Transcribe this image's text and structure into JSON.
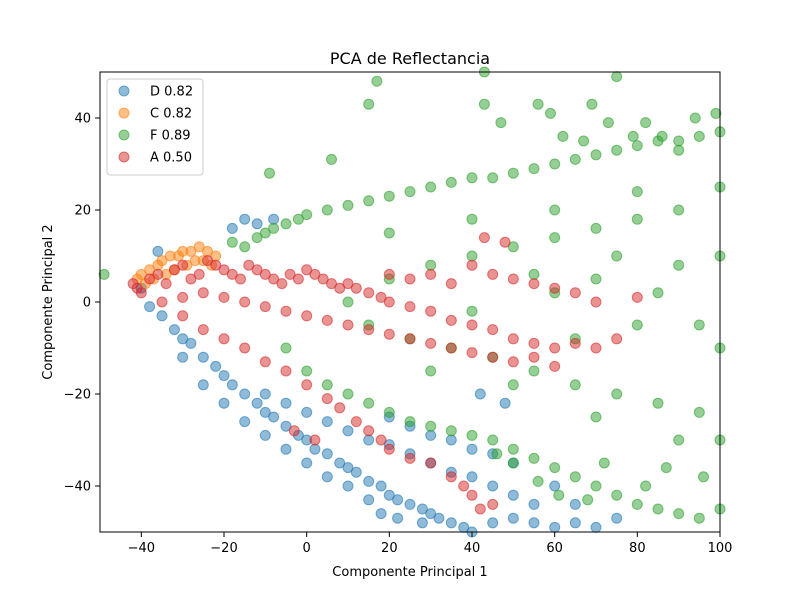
{
  "chart_data": {
    "type": "scatter",
    "title": "PCA de Reflectancia",
    "xlabel": "Componente Principal 1",
    "ylabel": "Componente Principal 2",
    "xlim": [
      -50,
      100
    ],
    "ylim": [
      -50,
      50
    ],
    "x_ticks": [
      -40,
      -20,
      0,
      20,
      40,
      60,
      80,
      100
    ],
    "y_ticks": [
      -40,
      -20,
      0,
      20,
      40
    ],
    "x_tick_labels": [
      "−40",
      "−20",
      "0",
      "20",
      "40",
      "60",
      "80",
      "100"
    ],
    "y_tick_labels": [
      "−40",
      "−20",
      "0",
      "20",
      "40"
    ],
    "grid": false,
    "legend_position": "top-left",
    "series": [
      {
        "name": "D 0.82",
        "color": "#1f77b4",
        "points": [
          [
            -40,
            3
          ],
          [
            -38,
            -1
          ],
          [
            -35,
            -3
          ],
          [
            -32,
            -6
          ],
          [
            -30,
            -8
          ],
          [
            -28,
            -9
          ],
          [
            -25,
            -12
          ],
          [
            -22,
            -14
          ],
          [
            -20,
            -16
          ],
          [
            -18,
            -18
          ],
          [
            -15,
            -20
          ],
          [
            -12,
            -22
          ],
          [
            -10,
            -24
          ],
          [
            -8,
            -25
          ],
          [
            -5,
            -27
          ],
          [
            -2,
            -29
          ],
          [
            0,
            -30
          ],
          [
            2,
            -32
          ],
          [
            5,
            -33
          ],
          [
            8,
            -35
          ],
          [
            10,
            -36
          ],
          [
            12,
            -37
          ],
          [
            15,
            -39
          ],
          [
            18,
            -40
          ],
          [
            20,
            -42
          ],
          [
            22,
            -43
          ],
          [
            25,
            -44
          ],
          [
            28,
            -45
          ],
          [
            30,
            -46
          ],
          [
            32,
            -47
          ],
          [
            35,
            -48
          ],
          [
            38,
            -49
          ],
          [
            40,
            -50
          ],
          [
            45,
            -48
          ],
          [
            50,
            -47
          ],
          [
            55,
            -48
          ],
          [
            60,
            -49
          ],
          [
            65,
            -48
          ],
          [
            70,
            -49
          ],
          [
            -10,
            -20
          ],
          [
            -5,
            -22
          ],
          [
            0,
            -24
          ],
          [
            5,
            -26
          ],
          [
            10,
            -28
          ],
          [
            15,
            -30
          ],
          [
            20,
            -31
          ],
          [
            25,
            -33
          ],
          [
            30,
            -35
          ],
          [
            35,
            -37
          ],
          [
            40,
            -38
          ],
          [
            45,
            -40
          ],
          [
            50,
            -42
          ],
          [
            55,
            -44
          ],
          [
            20,
            -25
          ],
          [
            25,
            -27
          ],
          [
            30,
            -29
          ],
          [
            35,
            -30
          ],
          [
            40,
            -32
          ],
          [
            45,
            -33
          ],
          [
            50,
            -35
          ],
          [
            28,
            -48
          ],
          [
            22,
            -47
          ],
          [
            18,
            -46
          ],
          [
            -15,
            18
          ],
          [
            -12,
            17
          ],
          [
            -18,
            16
          ],
          [
            -8,
            18
          ],
          [
            -36,
            11
          ],
          [
            -30,
            -12
          ],
          [
            -25,
            -18
          ],
          [
            -20,
            -22
          ],
          [
            -15,
            -26
          ],
          [
            -10,
            -29
          ],
          [
            -5,
            -32
          ],
          [
            0,
            -35
          ],
          [
            5,
            -38
          ],
          [
            10,
            -40
          ],
          [
            15,
            -43
          ],
          [
            60,
            -40
          ],
          [
            65,
            -44
          ],
          [
            75,
            -47
          ],
          [
            42,
            -20
          ],
          [
            48,
            -22
          ]
        ]
      },
      {
        "name": "C 0.82",
        "color": "#ff7f0e",
        "points": [
          [
            -41,
            5
          ],
          [
            -40,
            6
          ],
          [
            -38,
            7
          ],
          [
            -36,
            8
          ],
          [
            -35,
            9
          ],
          [
            -33,
            10
          ],
          [
            -31,
            10
          ],
          [
            -30,
            11
          ],
          [
            -28,
            11
          ],
          [
            -26,
            12
          ],
          [
            -24,
            11
          ],
          [
            -22,
            10
          ],
          [
            -39,
            4
          ],
          [
            -37,
            5
          ],
          [
            -34,
            6
          ],
          [
            -32,
            7
          ],
          [
            -29,
            8
          ],
          [
            -27,
            9
          ],
          [
            -25,
            9
          ],
          [
            -23,
            8
          ]
        ]
      },
      {
        "name": "F 0.89",
        "color": "#2ca02c",
        "points": [
          [
            -49,
            6
          ],
          [
            -18,
            13
          ],
          [
            -15,
            12
          ],
          [
            -12,
            14
          ],
          [
            -10,
            15
          ],
          [
            -8,
            16
          ],
          [
            -5,
            17
          ],
          [
            -2,
            18
          ],
          [
            0,
            19
          ],
          [
            5,
            20
          ],
          [
            10,
            21
          ],
          [
            15,
            22
          ],
          [
            20,
            23
          ],
          [
            25,
            24
          ],
          [
            30,
            25
          ],
          [
            35,
            26
          ],
          [
            40,
            27
          ],
          [
            45,
            27
          ],
          [
            50,
            28
          ],
          [
            55,
            29
          ],
          [
            60,
            30
          ],
          [
            65,
            31
          ],
          [
            70,
            32
          ],
          [
            75,
            33
          ],
          [
            80,
            34
          ],
          [
            85,
            35
          ],
          [
            90,
            35
          ],
          [
            95,
            36
          ],
          [
            100,
            37
          ],
          [
            -5,
            -10
          ],
          [
            0,
            -15
          ],
          [
            5,
            -18
          ],
          [
            10,
            -20
          ],
          [
            15,
            -22
          ],
          [
            20,
            -24
          ],
          [
            25,
            -26
          ],
          [
            30,
            -27
          ],
          [
            35,
            -28
          ],
          [
            40,
            -29
          ],
          [
            45,
            -30
          ],
          [
            50,
            -32
          ],
          [
            55,
            -34
          ],
          [
            60,
            -36
          ],
          [
            65,
            -38
          ],
          [
            70,
            -40
          ],
          [
            75,
            -42
          ],
          [
            80,
            -44
          ],
          [
            85,
            -45
          ],
          [
            90,
            -46
          ],
          [
            95,
            -47
          ],
          [
            100,
            -45
          ],
          [
            10,
            0
          ],
          [
            20,
            5
          ],
          [
            30,
            8
          ],
          [
            40,
            10
          ],
          [
            50,
            12
          ],
          [
            60,
            14
          ],
          [
            70,
            16
          ],
          [
            80,
            18
          ],
          [
            90,
            20
          ],
          [
            15,
            -5
          ],
          [
            25,
            -8
          ],
          [
            35,
            -10
          ],
          [
            45,
            -12
          ],
          [
            55,
            -15
          ],
          [
            65,
            -18
          ],
          [
            75,
            -20
          ],
          [
            85,
            -22
          ],
          [
            95,
            -24
          ],
          [
            20,
            15
          ],
          [
            30,
            -15
          ],
          [
            40,
            18
          ],
          [
            50,
            -18
          ],
          [
            60,
            20
          ],
          [
            70,
            -25
          ],
          [
            80,
            24
          ],
          [
            90,
            -30
          ],
          [
            100,
            10
          ],
          [
            100,
            -10
          ],
          [
            100,
            25
          ],
          [
            100,
            -30
          ],
          [
            -9,
            28
          ],
          [
            6,
            31
          ],
          [
            15,
            43
          ],
          [
            17,
            48
          ],
          [
            43,
            50
          ],
          [
            43,
            43
          ],
          [
            47,
            39
          ],
          [
            56,
            43
          ],
          [
            59,
            41
          ],
          [
            62,
            36
          ],
          [
            67,
            35
          ],
          [
            69,
            43
          ],
          [
            73,
            39
          ],
          [
            75,
            49
          ],
          [
            79,
            36
          ],
          [
            82,
            39
          ],
          [
            86,
            36
          ],
          [
            90,
            33
          ],
          [
            94,
            40
          ],
          [
            99,
            41
          ],
          [
            72,
            -35
          ],
          [
            82,
            -40
          ],
          [
            87,
            -36
          ],
          [
            96,
            -38
          ],
          [
            68,
            -43
          ],
          [
            61,
            -42
          ],
          [
            56,
            -39
          ],
          [
            50,
            -35
          ],
          [
            46,
            -33
          ],
          [
            60,
            2
          ],
          [
            70,
            5
          ],
          [
            80,
            -5
          ],
          [
            90,
            8
          ],
          [
            40,
            -2
          ],
          [
            55,
            6
          ],
          [
            65,
            -8
          ],
          [
            75,
            10
          ],
          [
            85,
            2
          ],
          [
            95,
            -5
          ]
        ]
      },
      {
        "name": "A 0.50",
        "color": "#d62728",
        "points": [
          [
            -42,
            4
          ],
          [
            -41,
            3
          ],
          [
            -40,
            2
          ],
          [
            -38,
            5
          ],
          [
            -36,
            6
          ],
          [
            -34,
            4
          ],
          [
            -32,
            7
          ],
          [
            -30,
            8
          ],
          [
            -28,
            5
          ],
          [
            -26,
            6
          ],
          [
            -24,
            9
          ],
          [
            -22,
            8
          ],
          [
            -20,
            7
          ],
          [
            -18,
            6
          ],
          [
            -16,
            5
          ],
          [
            -14,
            8
          ],
          [
            -12,
            7
          ],
          [
            -10,
            6
          ],
          [
            -8,
            5
          ],
          [
            -6,
            4
          ],
          [
            -4,
            6
          ],
          [
            -2,
            5
          ],
          [
            0,
            7
          ],
          [
            2,
            6
          ],
          [
            4,
            5
          ],
          [
            6,
            4
          ],
          [
            8,
            3
          ],
          [
            10,
            4
          ],
          [
            12,
            3
          ],
          [
            15,
            2
          ],
          [
            18,
            1
          ],
          [
            20,
            0
          ],
          [
            25,
            -1
          ],
          [
            30,
            -2
          ],
          [
            35,
            -4
          ],
          [
            40,
            -5
          ],
          [
            45,
            -6
          ],
          [
            50,
            -8
          ],
          [
            55,
            -9
          ],
          [
            60,
            -10
          ],
          [
            65,
            -9
          ],
          [
            70,
            -10
          ],
          [
            75,
            -8
          ],
          [
            -30,
            -3
          ],
          [
            -25,
            -6
          ],
          [
            -20,
            -8
          ],
          [
            -15,
            -10
          ],
          [
            -10,
            -13
          ],
          [
            -5,
            -15
          ],
          [
            0,
            -18
          ],
          [
            5,
            -21
          ],
          [
            8,
            -23
          ],
          [
            12,
            -26
          ],
          [
            15,
            -28
          ],
          [
            18,
            -30
          ],
          [
            20,
            -32
          ],
          [
            25,
            -34
          ],
          [
            30,
            -35
          ],
          [
            35,
            -38
          ],
          [
            38,
            -40
          ],
          [
            40,
            -42
          ],
          [
            42,
            -45
          ],
          [
            45,
            -44
          ],
          [
            -35,
            0
          ],
          [
            -30,
            1
          ],
          [
            -25,
            2
          ],
          [
            -20,
            1
          ],
          [
            -15,
            0
          ],
          [
            -10,
            -1
          ],
          [
            -5,
            -2
          ],
          [
            0,
            -3
          ],
          [
            5,
            -4
          ],
          [
            10,
            -5
          ],
          [
            15,
            -6
          ],
          [
            20,
            -7
          ],
          [
            25,
            -8
          ],
          [
            30,
            -9
          ],
          [
            35,
            -10
          ],
          [
            40,
            -11
          ],
          [
            45,
            -12
          ],
          [
            50,
            -13
          ],
          [
            55,
            -12
          ],
          [
            60,
            -14
          ],
          [
            20,
            6
          ],
          [
            25,
            5
          ],
          [
            30,
            6
          ],
          [
            35,
            4
          ],
          [
            40,
            8
          ],
          [
            45,
            6
          ],
          [
            50,
            5
          ],
          [
            55,
            4
          ],
          [
            60,
            3
          ],
          [
            65,
            2
          ],
          [
            70,
            0
          ],
          [
            80,
            1
          ],
          [
            43,
            14
          ],
          [
            48,
            13
          ],
          [
            -3,
            -28
          ],
          [
            2,
            -30
          ]
        ]
      }
    ]
  }
}
